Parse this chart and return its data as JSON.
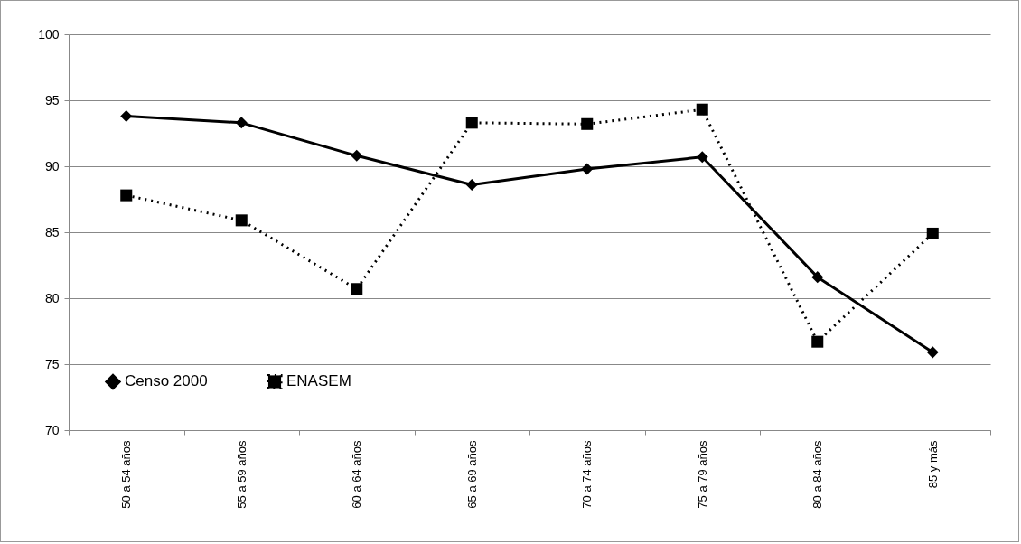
{
  "chart_data": {
    "type": "line",
    "categories": [
      "50 a 54 años",
      "55 a 59 años",
      "60 a 64 años",
      "65 a 69 años",
      "70 a 74 años",
      "75 a 79 años",
      "80 a 84 años",
      "85 y más"
    ],
    "series": [
      {
        "name": "Censo 2000",
        "color": "#000000",
        "marker": "diamond",
        "line_style": "solid",
        "values": [
          93.8,
          93.3,
          90.8,
          88.6,
          89.8,
          90.7,
          81.6,
          75.9
        ]
      },
      {
        "name": "ENASEM",
        "color": "#000000",
        "marker": "square",
        "line_style": "dotted",
        "values": [
          87.8,
          85.9,
          80.7,
          93.3,
          93.2,
          94.3,
          76.7,
          84.9
        ]
      }
    ],
    "ylim": [
      70,
      100
    ],
    "yticks": [
      70,
      75,
      80,
      85,
      90,
      95,
      100
    ],
    "grid": "y",
    "legend": "bottom left"
  }
}
